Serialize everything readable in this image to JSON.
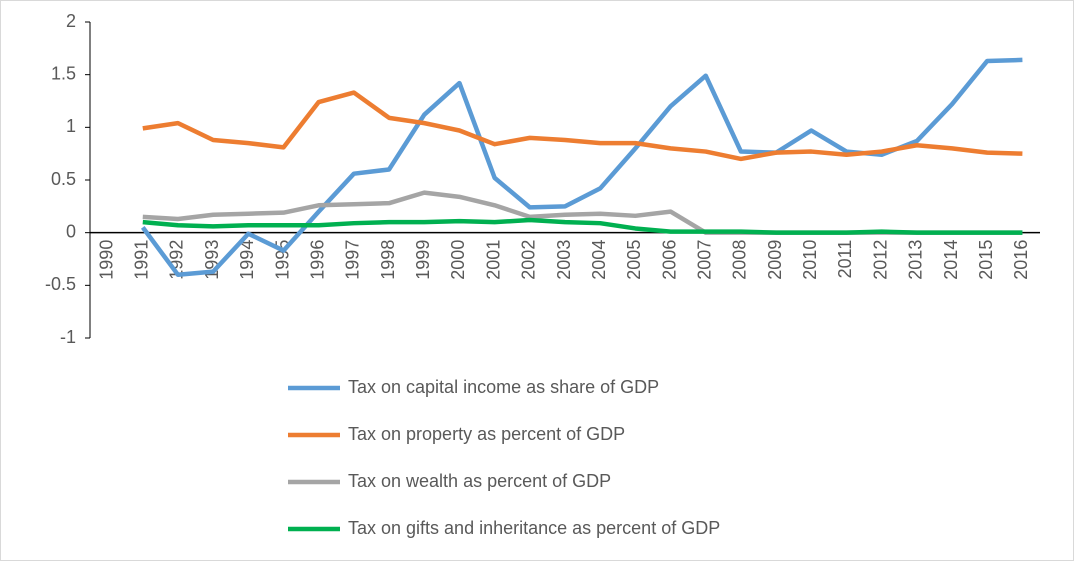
{
  "chart_data": {
    "type": "line",
    "categories": [
      "1990",
      "1991",
      "1992",
      "1993",
      "1994",
      "1995",
      "1996",
      "1997",
      "1998",
      "1999",
      "2000",
      "2001",
      "2002",
      "2003",
      "2004",
      "2005",
      "2006",
      "2007",
      "2008",
      "2009",
      "2010",
      "2011",
      "2012",
      "2013",
      "2014",
      "2015",
      "2016"
    ],
    "series": [
      {
        "name": "Tax on capital income as share of GDP",
        "color": "#5b9bd5",
        "values": [
          null,
          0.05,
          -0.4,
          -0.37,
          -0.01,
          -0.17,
          0.2,
          0.56,
          0.6,
          1.12,
          1.42,
          0.52,
          0.24,
          0.25,
          0.42,
          0.8,
          1.2,
          1.49,
          0.77,
          0.76,
          0.97,
          0.77,
          0.74,
          0.87,
          1.22,
          1.63,
          1.64
        ]
      },
      {
        "name": "Tax on property as percent of GDP",
        "color": "#ed7d31",
        "values": [
          null,
          0.99,
          1.04,
          0.88,
          0.85,
          0.81,
          1.24,
          1.33,
          1.09,
          1.04,
          0.97,
          0.84,
          0.9,
          0.88,
          0.85,
          0.85,
          0.8,
          0.77,
          0.7,
          0.76,
          0.77,
          0.74,
          0.77,
          0.83,
          0.8,
          0.76,
          0.75
        ]
      },
      {
        "name": "Tax on wealth as percent of GDP",
        "color": "#a5a5a5",
        "values": [
          null,
          0.15,
          0.13,
          0.17,
          0.18,
          0.19,
          0.26,
          0.27,
          0.28,
          0.38,
          0.34,
          0.26,
          0.15,
          0.17,
          0.18,
          0.16,
          0.2,
          0,
          0,
          0,
          0,
          0,
          0,
          0,
          0,
          0,
          0
        ]
      },
      {
        "name": "Tax on gifts and inheritance as percent of GDP",
        "color": "#00b050",
        "values": [
          null,
          0.1,
          0.07,
          0.06,
          0.07,
          0.07,
          0.07,
          0.09,
          0.1,
          0.1,
          0.11,
          0.1,
          0.12,
          0.1,
          0.09,
          0.04,
          0.01,
          0.01,
          0.01,
          0,
          0,
          0,
          0.01,
          0,
          0,
          0,
          0
        ]
      }
    ],
    "ylim": [
      -1,
      2
    ],
    "yticks": [
      -1,
      -0.5,
      0,
      0.5,
      1,
      1.5,
      2
    ],
    "grid": false
  }
}
